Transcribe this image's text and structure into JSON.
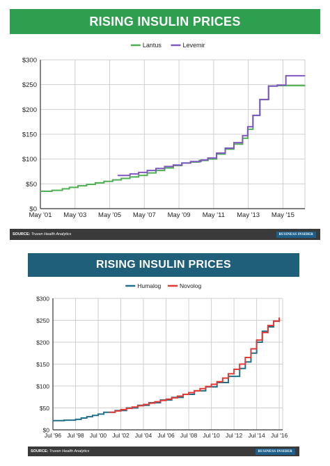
{
  "charts": [
    {
      "banner_title": "RISING INSULIN PRICES",
      "banner_color": "#2e9e4f",
      "source_label": "SOURCE:",
      "source_text": "Truven Health Analytics",
      "logo_text": "BUSINESS INSIDER",
      "legend": [
        {
          "name": "Lantus",
          "color": "#4caf50"
        },
        {
          "name": "Levemir",
          "color": "#7e57c2"
        }
      ]
    },
    {
      "banner_title": "RISING INSULIN PRICES",
      "banner_color": "#1f5f7a",
      "source_label": "SOURCE:",
      "source_text": "Truven Health Analytics",
      "logo_text": "BUSINESS INSIDER",
      "legend": [
        {
          "name": "Humalog",
          "color": "#1f6f8b"
        },
        {
          "name": "Novolog",
          "color": "#e53935"
        }
      ]
    }
  ],
  "chart_data": [
    {
      "type": "line",
      "title": "RISING INSULIN PRICES",
      "xlabel": "",
      "ylabel": "",
      "x_tick_labels": [
        "May '01",
        "May '03",
        "May '05",
        "May '07",
        "May '09",
        "May '11",
        "May '13",
        "May '15"
      ],
      "y_tick_labels": [
        "$0",
        "$50",
        "$100",
        "$150",
        "$200",
        "$250",
        "$300"
      ],
      "xlim": [
        2001.33,
        2016.6
      ],
      "ylim": [
        0,
        300
      ],
      "grid": true,
      "legend_position": "top-center",
      "step": true,
      "series": [
        {
          "name": "Lantus",
          "color": "#4caf50",
          "x": [
            2001.33,
            2002.0,
            2002.6,
            2003.0,
            2003.5,
            2004.0,
            2004.5,
            2005.0,
            2005.5,
            2006.0,
            2006.5,
            2007.0,
            2007.5,
            2008.0,
            2008.5,
            2009.0,
            2009.5,
            2010.0,
            2010.5,
            2011.0,
            2011.5,
            2012.0,
            2012.5,
            2013.0,
            2013.3,
            2013.6,
            2014.0,
            2014.5,
            2015.0,
            2016.6
          ],
          "values": [
            35,
            37,
            40,
            43,
            46,
            49,
            52,
            55,
            58,
            61,
            64,
            67,
            72,
            77,
            82,
            87,
            92,
            94,
            97,
            100,
            110,
            120,
            130,
            142,
            160,
            188,
            220,
            247,
            248,
            248
          ]
        },
        {
          "name": "Levemir",
          "color": "#7e57c2",
          "x": [
            2005.8,
            2006.5,
            2007.0,
            2007.5,
            2008.0,
            2008.5,
            2009.0,
            2009.5,
            2010.0,
            2010.6,
            2011.0,
            2011.5,
            2012.0,
            2012.5,
            2013.0,
            2013.3,
            2013.6,
            2014.0,
            2014.5,
            2015.0,
            2015.5,
            2016.6
          ],
          "values": [
            67,
            70,
            73,
            77,
            81,
            85,
            88,
            92,
            95,
            98,
            102,
            112,
            122,
            133,
            147,
            165,
            188,
            220,
            247,
            249,
            268,
            268
          ]
        }
      ]
    },
    {
      "type": "line",
      "title": "RISING INSULIN PRICES",
      "xlabel": "",
      "ylabel": "",
      "x_tick_labels": [
        "Jul '96",
        "Jul '98",
        "Jul '00",
        "Jul '02",
        "Jul '04",
        "Jul '06",
        "Jul '08",
        "Jul '10",
        "Jul '12",
        "Jul '14",
        "Jul '16"
      ],
      "y_tick_labels": [
        "$0",
        "$50",
        "$100",
        "$150",
        "$200",
        "$250",
        "$300"
      ],
      "xlim": [
        1996.5,
        2016.8
      ],
      "ylim": [
        0,
        300
      ],
      "grid": true,
      "legend_position": "top-center",
      "step": true,
      "series": [
        {
          "name": "Humalog",
          "color": "#1f6f8b",
          "x": [
            1996.5,
            1997.5,
            1998.5,
            1999.0,
            1999.5,
            2000.0,
            2000.5,
            2001.0,
            2002.0,
            2003.0,
            2004.0,
            2005.0,
            2006.0,
            2007.0,
            2008.0,
            2009.0,
            2010.0,
            2011.0,
            2012.0,
            2013.0,
            2013.5,
            2014.0,
            2014.5,
            2015.0,
            2015.5,
            2016.0,
            2016.5
          ],
          "values": [
            21,
            22,
            24,
            27,
            30,
            33,
            36,
            40,
            44,
            50,
            56,
            62,
            68,
            74,
            81,
            89,
            98,
            108,
            122,
            140,
            155,
            175,
            200,
            225,
            235,
            248,
            255
          ]
        },
        {
          "name": "Novolog",
          "color": "#e53935",
          "x": [
            2001.5,
            2002.0,
            2002.5,
            2003.0,
            2003.5,
            2004.0,
            2004.5,
            2005.0,
            2005.5,
            2006.0,
            2006.5,
            2007.0,
            2007.5,
            2008.0,
            2008.5,
            2009.0,
            2009.5,
            2010.0,
            2010.5,
            2011.0,
            2011.5,
            2012.0,
            2012.5,
            2013.0,
            2013.5,
            2014.0,
            2014.5,
            2015.0,
            2015.5,
            2016.0,
            2016.5
          ],
          "values": [
            40,
            43,
            46,
            49,
            52,
            55,
            58,
            61,
            64,
            67,
            70,
            73,
            77,
            81,
            85,
            89,
            94,
            99,
            104,
            110,
            118,
            128,
            138,
            150,
            165,
            185,
            205,
            222,
            238,
            248,
            256
          ]
        }
      ]
    }
  ]
}
